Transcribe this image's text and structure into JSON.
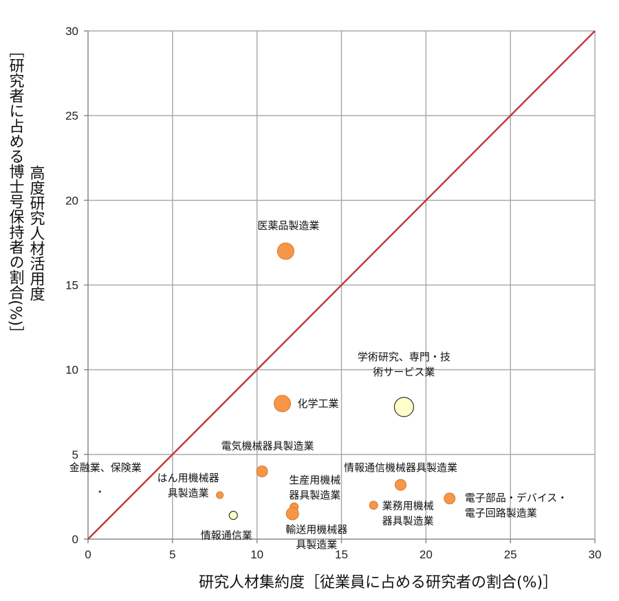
{
  "chart_data": {
    "type": "scatter",
    "title": "",
    "xlabel": "研究人材集約度［従業員に占める研究者の割合(%)］",
    "ylabel_main": "高度研究人材活用度",
    "ylabel_sub": "［研究者に占める博士号保持者の割合(%)］",
    "xlim": [
      0,
      30
    ],
    "ylim": [
      0,
      30
    ],
    "x_ticks": [
      "0",
      "5",
      "10",
      "15",
      "20",
      "25",
      "30"
    ],
    "y_ticks": [
      "0",
      "5",
      "10",
      "15",
      "20",
      "25",
      "30"
    ],
    "grid": true,
    "reference_line": {
      "x": [
        0,
        30
      ],
      "y": [
        0,
        30
      ],
      "color": "#c0393b"
    },
    "colors": {
      "orange": "#f79646",
      "pale": "#ffffcc",
      "grid": "#aaaaaa",
      "axis": "#888888"
    },
    "points": [
      {
        "label": [
          "医薬品製造業"
        ],
        "x": 11.7,
        "y": 17.0,
        "size": 12,
        "color": "orange"
      },
      {
        "label": [
          "化学工業"
        ],
        "x": 11.5,
        "y": 8.0,
        "size": 12,
        "color": "orange"
      },
      {
        "label": [
          "学術研究、専門・技",
          "術サービス業"
        ],
        "x": 18.7,
        "y": 7.8,
        "size": 14,
        "color": "pale"
      },
      {
        "label": [
          "電気機械器具製造業"
        ],
        "x": 10.3,
        "y": 4.0,
        "size": 8,
        "color": "orange"
      },
      {
        "label": [
          "情報通信機械器具製造業"
        ],
        "x": 18.5,
        "y": 3.2,
        "size": 8,
        "color": "orange"
      },
      {
        "label": [
          "生産用機械",
          "器具製造業"
        ],
        "x": 12.2,
        "y": 1.9,
        "size": 6,
        "color": "orange"
      },
      {
        "label": [
          "輸送用機械器",
          "具製造業"
        ],
        "x": 12.1,
        "y": 1.5,
        "size": 9,
        "color": "orange"
      },
      {
        "label": [
          "業務用機械",
          "器具製造業"
        ],
        "x": 16.9,
        "y": 2.0,
        "size": 6,
        "color": "orange"
      },
      {
        "label": [
          "電子部品・デバイス・",
          "電子回路製造業"
        ],
        "x": 21.4,
        "y": 2.4,
        "size": 8,
        "color": "orange"
      },
      {
        "label": [
          "はん用機械器",
          "具製造業"
        ],
        "x": 7.8,
        "y": 2.6,
        "size": 5,
        "color": "orange"
      },
      {
        "label": [
          "情報通信業"
        ],
        "x": 8.6,
        "y": 1.4,
        "size": 6,
        "color": "pale"
      },
      {
        "label": [
          "金融業、保険業"
        ],
        "x": 0.7,
        "y": 2.8,
        "size": 1,
        "color": "pale"
      }
    ]
  }
}
